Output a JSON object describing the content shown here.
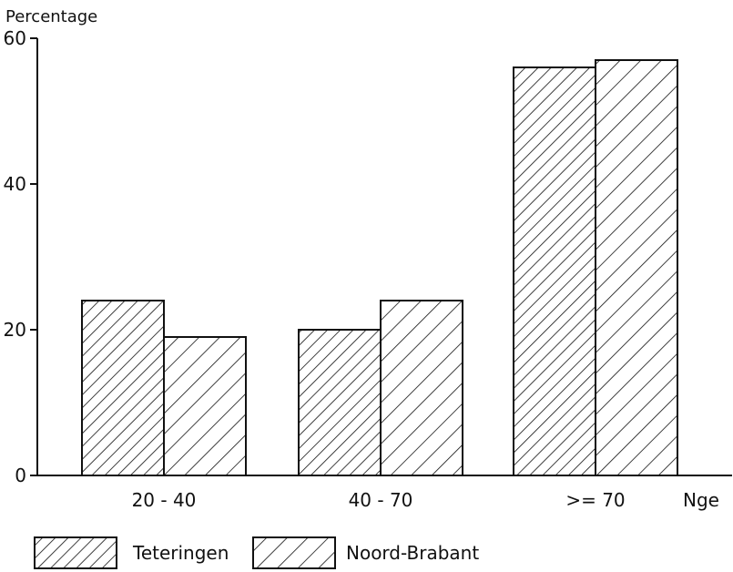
{
  "chart_data": {
    "type": "bar",
    "ylabel": "Percentage",
    "xlabel": "Nge",
    "categories": [
      "20 - 40",
      "40 - 70",
      ">= 70"
    ],
    "series": [
      {
        "name": "Teteringen",
        "values": [
          24,
          20,
          56
        ]
      },
      {
        "name": "Noord-Brabant",
        "values": [
          19,
          24,
          57
        ]
      }
    ],
    "ylim": [
      0,
      60
    ],
    "yticks": [
      0,
      20,
      40,
      60
    ],
    "grid": false,
    "legend_position": "bottom-left"
  },
  "colors": {
    "axis": "#111111",
    "bar_fill": "#ffffff",
    "hatch": "#111111"
  }
}
